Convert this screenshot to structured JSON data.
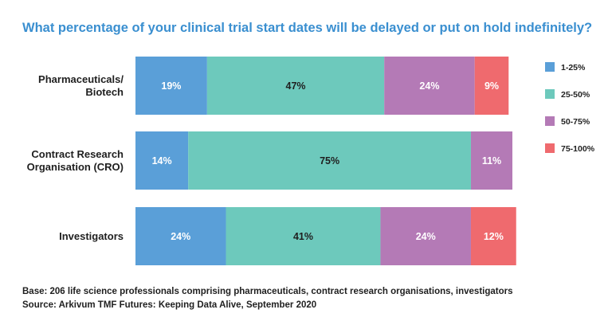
{
  "chart_data": {
    "type": "bar",
    "orientation": "horizontal",
    "stacked": true,
    "title": "What percentage of your clinical trial start dates will be delayed or put on hold indefinitely?",
    "categories": [
      "Pharmaceuticals/\nBiotech",
      "Contract Research\nOrganisation (CRO)",
      "Investigators"
    ],
    "series": [
      {
        "name": "1-25%",
        "color": "#5a9fd8",
        "values": [
          19,
          14,
          24
        ],
        "labels": [
          "19%",
          "14%",
          "24%"
        ]
      },
      {
        "name": "25-50%",
        "color": "#6dc9bc",
        "values": [
          47,
          75,
          41
        ],
        "labels": [
          "47%",
          "75%",
          "41%"
        ]
      },
      {
        "name": "50-75%",
        "color": "#b47ab6",
        "values": [
          24,
          11,
          24
        ],
        "labels": [
          "24%",
          "11%",
          "24%"
        ]
      },
      {
        "name": "75-100%",
        "color": "#ef6a6e",
        "values": [
          9,
          0,
          12
        ],
        "labels": [
          "9%",
          "",
          "12%"
        ]
      }
    ],
    "xlim": [
      0,
      100
    ],
    "legend": "right"
  },
  "footer": {
    "base": "Base: 206 life science professionals comprising pharmaceuticals, contract research organisations, investigators",
    "source": "Source: Arkivum TMF Futures: Keeping Data Alive, September 2020"
  }
}
